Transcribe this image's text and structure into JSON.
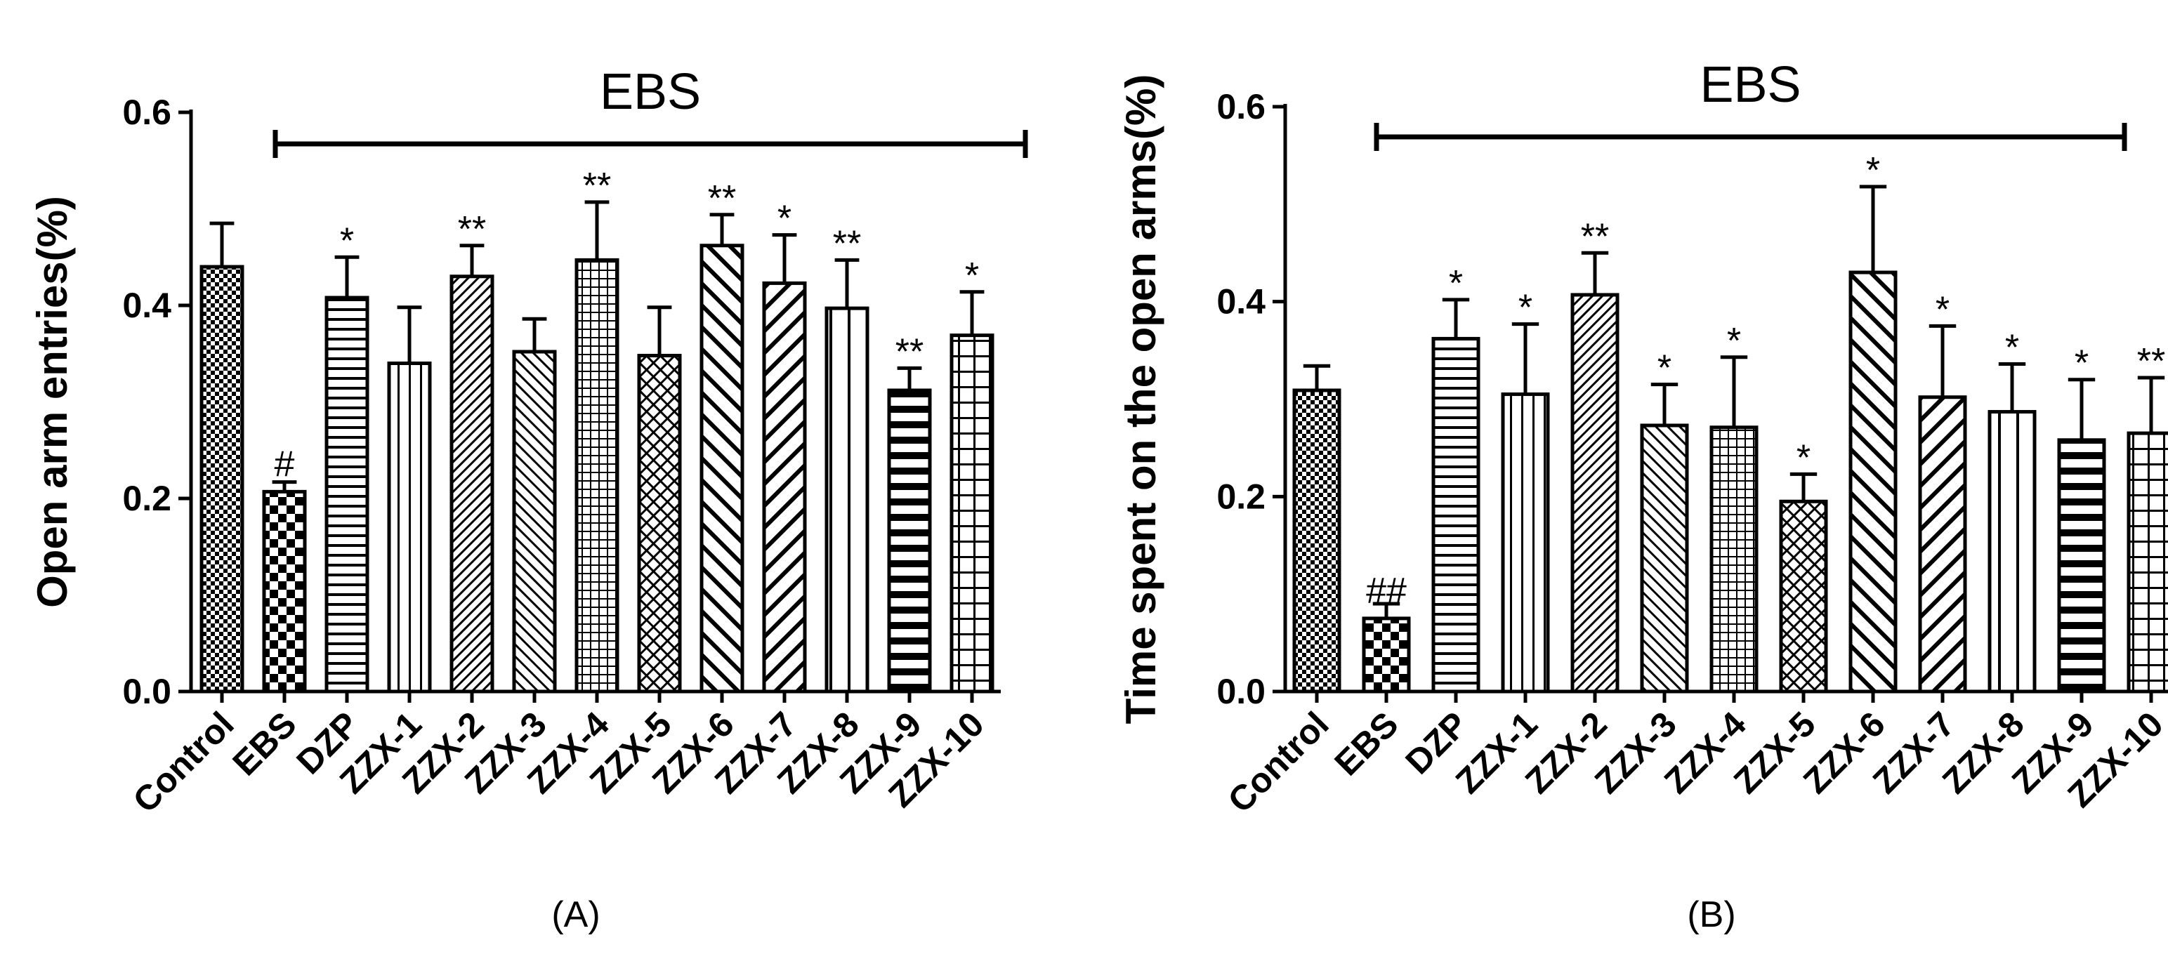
{
  "chart_data": [
    {
      "type": "bar",
      "panel_label": "(A)",
      "ylabel": "Open arm entries(%)",
      "xlabel": "",
      "ylim": [
        0,
        0.6
      ],
      "yticks": [
        "0.0",
        "0.2",
        "0.4",
        "0.6"
      ],
      "group_bracket_label": "EBS",
      "categories": [
        "Control",
        "EBS",
        "DZP",
        "ZZX-1",
        "ZZX-2",
        "ZZX-3",
        "ZZX-4",
        "ZZX-5",
        "ZZX-6",
        "ZZX-7",
        "ZZX-8",
        "ZZX-9",
        "ZZX-10"
      ],
      "values": [
        0.44,
        0.207,
        0.408,
        0.34,
        0.43,
        0.352,
        0.447,
        0.348,
        0.462,
        0.423,
        0.397,
        0.312,
        0.369
      ],
      "errors": [
        0.045,
        0.01,
        0.042,
        0.058,
        0.032,
        0.034,
        0.06,
        0.05,
        0.032,
        0.05,
        0.05,
        0.023,
        0.045
      ],
      "significance": [
        "",
        "#",
        "*",
        "",
        "**",
        "",
        "**",
        "",
        "**",
        "*",
        "**",
        "**",
        "*"
      ]
    },
    {
      "type": "bar",
      "panel_label": "(B)",
      "ylabel": "Time spent on the open arms(%)",
      "xlabel": "",
      "ylim": [
        0,
        0.6
      ],
      "yticks": [
        "0.0",
        "0.2",
        "0.4",
        "0.6"
      ],
      "group_bracket_label": "EBS",
      "categories": [
        "Control",
        "EBS",
        "DZP",
        "ZZX-1",
        "ZZX-2",
        "ZZX-3",
        "ZZX-4",
        "ZZX-5",
        "ZZX-6",
        "ZZX-7",
        "ZZX-8",
        "ZZX-9",
        "ZZX-10"
      ],
      "values": [
        0.309,
        0.075,
        0.362,
        0.305,
        0.407,
        0.273,
        0.271,
        0.195,
        0.43,
        0.302,
        0.287,
        0.258,
        0.265
      ],
      "errors": [
        0.025,
        0.015,
        0.04,
        0.072,
        0.043,
        0.042,
        0.072,
        0.028,
        0.088,
        0.073,
        0.049,
        0.062,
        0.057
      ],
      "significance": [
        "",
        "##",
        "*",
        "*",
        "**",
        "*",
        "*",
        "*",
        "*",
        "*",
        "*",
        "*",
        "**"
      ]
    }
  ]
}
